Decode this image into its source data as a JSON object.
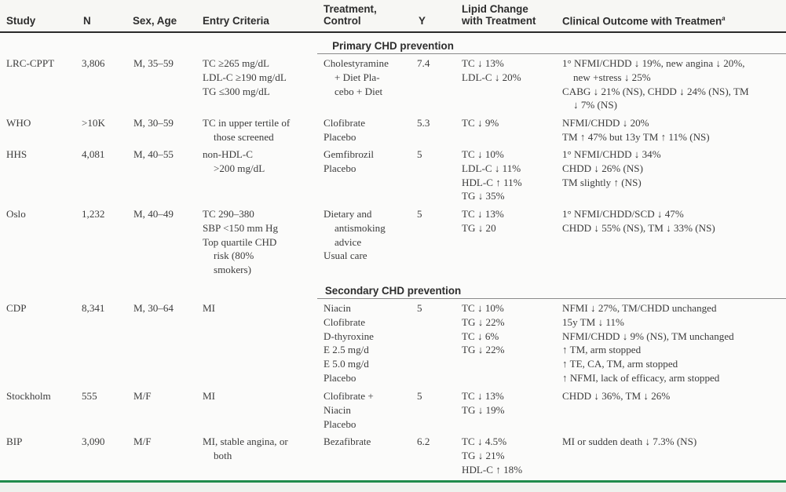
{
  "header": {
    "study": "Study",
    "n": "N",
    "sex_age": "Sex, Age",
    "entry": "Entry Criteria",
    "treatment": [
      "Treatment,",
      "Control"
    ],
    "y": "Y",
    "lipid": [
      "Lipid Change",
      "with Treatment"
    ],
    "outcome": "Clinical Outcome with Treatmen",
    "outcome_sup": "a"
  },
  "sections": {
    "primary": "Primary CHD prevention",
    "secondary": "Secondary CHD prevention"
  },
  "rows": [
    {
      "study": "LRC-CPPT",
      "n": "3,806",
      "sex_age": "M, 35–59",
      "entry": [
        {
          "t": "TC ≥265 mg/dL"
        },
        {
          "t": "LDL-C ≥190 mg/dL"
        },
        {
          "t": "TG ≤300 mg/dL"
        }
      ],
      "treatment": [
        {
          "t": "Cholestyramine"
        },
        {
          "t": "+ Diet Pla-",
          "i": 1
        },
        {
          "t": "cebo + Diet",
          "i": 1
        }
      ],
      "y": "7.4",
      "lipid": [
        {
          "t": "TC ↓ 13%"
        },
        {
          "t": "LDL-C ↓ 20%"
        }
      ],
      "outcome": [
        {
          "t": "1° NFMI/CHDD ↓ 19%, new angina ↓ 20%,"
        },
        {
          "t": "new +stress ↓ 25%",
          "i": 1
        },
        {
          "t": "CABG ↓ 21% (NS), CHDD ↓ 24% (NS), TM"
        },
        {
          "t": "↓ 7% (NS)",
          "i": 1
        }
      ]
    },
    {
      "study": "WHO",
      "n": ">10K",
      "sex_age": "M, 30–59",
      "entry": [
        {
          "t": "TC in upper tertile of"
        },
        {
          "t": "those screened",
          "i": 1
        }
      ],
      "treatment": [
        {
          "t": "Clofibrate"
        },
        {
          "t": "Placebo"
        }
      ],
      "y": "5.3",
      "lipid": [
        {
          "t": "TC ↓ 9%"
        }
      ],
      "outcome": [
        {
          "t": "NFMI/CHDD ↓ 20%"
        },
        {
          "t": "TM ↑ 47% but 13y TM ↑ 11% (NS)"
        }
      ]
    },
    {
      "study": "HHS",
      "n": "4,081",
      "sex_age": "M, 40–55",
      "entry": [
        {
          "t": "non-HDL-C"
        },
        {
          "t": ">200 mg/dL",
          "i": 1
        }
      ],
      "treatment": [
        {
          "t": "Gemfibrozil"
        },
        {
          "t": "Placebo"
        }
      ],
      "y": "5",
      "lipid": [
        {
          "t": "TC ↓ 10%"
        },
        {
          "t": "LDL-C ↓ 11%"
        },
        {
          "t": "HDL-C ↑ 11%"
        },
        {
          "t": "TG ↓ 35%"
        }
      ],
      "outcome": [
        {
          "t": "1° NFMI/CHDD ↓ 34%"
        },
        {
          "t": "CHDD ↓ 26% (NS)"
        },
        {
          "t": "TM slightly ↑ (NS)"
        }
      ]
    },
    {
      "study": "Oslo",
      "n": "1,232",
      "sex_age": "M, 40–49",
      "entry": [
        {
          "t": "TC 290–380"
        },
        {
          "t": "SBP <150 mm Hg"
        },
        {
          "t": "Top quartile CHD"
        },
        {
          "t": "risk (80%",
          "i": 1
        },
        {
          "t": "smokers)",
          "i": 1
        }
      ],
      "treatment": [
        {
          "t": "Dietary and"
        },
        {
          "t": "antismoking",
          "i": 1
        },
        {
          "t": "advice",
          "i": 1
        },
        {
          "t": "Usual care"
        }
      ],
      "y": "5",
      "lipid": [
        {
          "t": "TC ↓ 13%"
        },
        {
          "t": "TG ↓ 20"
        }
      ],
      "outcome": [
        {
          "t": "1° NFMI/CHDD/SCD ↓ 47%"
        },
        {
          "t": "CHDD ↓ 55% (NS), TM ↓ 33% (NS)"
        }
      ]
    },
    {
      "study": "CDP",
      "n": "8,341",
      "sex_age": "M, 30–64",
      "entry": [
        {
          "t": "MI"
        }
      ],
      "treatment": [
        {
          "t": "Niacin"
        },
        {
          "t": "Clofibrate"
        },
        {
          "t": "D-thyroxine"
        },
        {
          "t": "E 2.5 mg/d"
        },
        {
          "t": "E 5.0 mg/d"
        },
        {
          "t": "Placebo"
        }
      ],
      "y": "5",
      "lipid": [
        {
          "t": "TC ↓ 10%"
        },
        {
          "t": "TG ↓ 22%"
        },
        {
          "t": "TC ↓ 6%"
        },
        {
          "t": "TG ↓ 22%"
        }
      ],
      "outcome": [
        {
          "t": "NFMI ↓ 27%, TM/CHDD unchanged"
        },
        {
          "t": "15y TM ↓ 11%"
        },
        {
          "t": "NFMI/CHDD ↓ 9% (NS), TM unchanged"
        },
        {
          "t": "↑ TM, arm stopped"
        },
        {
          "t": "↑ TE, CA, TM, arm stopped"
        },
        {
          "t": "↑ NFMI, lack of efficacy, arm stopped"
        }
      ]
    },
    {
      "study": "Stockholm",
      "n": "555",
      "sex_age": "M/F",
      "entry": [
        {
          "t": "MI"
        }
      ],
      "treatment": [
        {
          "t": "Clofibrate +"
        },
        {
          "t": "Niacin"
        },
        {
          "t": "Placebo"
        }
      ],
      "y": "5",
      "lipid": [
        {
          "t": "TC ↓ 13%"
        },
        {
          "t": "TG ↓ 19%"
        }
      ],
      "outcome": [
        {
          "t": "CHDD ↓ 36%, TM ↓ 26%"
        }
      ]
    },
    {
      "study": "BIP",
      "n": "3,090",
      "sex_age": "M/F",
      "entry": [
        {
          "t": "MI, stable angina, or"
        },
        {
          "t": "both",
          "i": 1
        }
      ],
      "treatment": [
        {
          "t": "Bezafibrate"
        }
      ],
      "y": "6.2",
      "lipid": [
        {
          "t": "TC ↓ 4.5%"
        },
        {
          "t": "TG ↓ 21%"
        },
        {
          "t": "HDL-C ↑ 18%"
        }
      ],
      "outcome": [
        {
          "t": "MI or sudden death ↓ 7.3% (NS)"
        }
      ]
    }
  ]
}
